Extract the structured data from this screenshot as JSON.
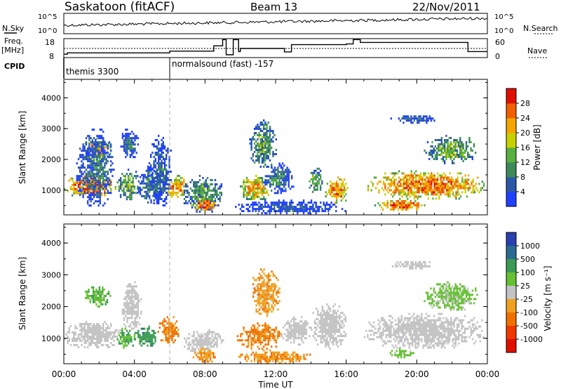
{
  "header": {
    "station": "Saskatoon (fitACF)",
    "beam": "Beam 13",
    "date": "22/Nov/2011"
  },
  "summary_panels": {
    "nsky_label": "N.Sky",
    "nsearch_label": "N.Search",
    "freq_label_line1": "Freq.",
    "freq_label_line2": "[MHz]",
    "nave_label": "Nave",
    "cpid_label": "CPID",
    "noise_ticks": [
      "10^5",
      "10^0"
    ],
    "freq_ticks": [
      "18",
      "8"
    ],
    "nave_ticks": [
      "60",
      "0"
    ],
    "cpid_segments": [
      {
        "start_hour": 0.0,
        "text": "themis 3300"
      },
      {
        "start_hour": 6.0,
        "text": "normalsound (fast) -157"
      }
    ],
    "frequency_mhz": [
      {
        "t": 0.0,
        "f": 9.8
      },
      {
        "t": 0.2,
        "f": 10.5
      },
      {
        "t": 6.0,
        "f": 11.4
      },
      {
        "t": 8.5,
        "f": 14.2
      },
      {
        "t": 9.0,
        "f": 17.5
      },
      {
        "t": 9.2,
        "f": 9.5
      },
      {
        "t": 9.6,
        "f": 17.5
      },
      {
        "t": 9.9,
        "f": 11.2
      },
      {
        "t": 10.0,
        "f": 12.8
      },
      {
        "t": 12.5,
        "f": 11.0
      },
      {
        "t": 12.9,
        "f": 14.8
      },
      {
        "t": 16.0,
        "f": 15.2
      },
      {
        "t": 16.4,
        "f": 17.5
      },
      {
        "t": 16.8,
        "f": 16.0
      },
      {
        "t": 22.9,
        "f": 11.2
      },
      {
        "t": 24.0,
        "f": 11.2
      }
    ]
  },
  "chart_data": [
    {
      "type": "heatmap",
      "name": "power-panel",
      "xlabel": "",
      "ylabel": "Slant Range [km]",
      "xlim": [
        0,
        24
      ],
      "ylim": [
        200,
        4600
      ],
      "yticks": [
        1000,
        2000,
        3000,
        4000
      ],
      "colorbar": {
        "label": "Power [dB]",
        "ticks": [
          "4",
          "8",
          "12",
          "16",
          "20",
          "24",
          "28"
        ],
        "colors": [
          "#2040ff",
          "#2d58a8",
          "#3d8a5a",
          "#58b040",
          "#c8d000",
          "#f5a500",
          "#f06000",
          "#e01000"
        ]
      },
      "blobs": [
        {
          "t0": 0.0,
          "t1": 2.9,
          "r0": 800,
          "r1": 1550,
          "v": 26
        },
        {
          "t0": 1.1,
          "t1": 2.6,
          "r0": 2000,
          "r1": 2700,
          "v": 22
        },
        {
          "t0": 0.7,
          "t1": 2.8,
          "r0": 500,
          "r1": 3000,
          "v": 8
        },
        {
          "t0": 3.0,
          "t1": 4.3,
          "r0": 700,
          "r1": 1700,
          "v": 14
        },
        {
          "t0": 3.2,
          "t1": 4.2,
          "r0": 2000,
          "r1": 3000,
          "v": 7
        },
        {
          "t0": 4.2,
          "t1": 5.5,
          "r0": 600,
          "r1": 1800,
          "v": 10
        },
        {
          "t0": 4.8,
          "t1": 6.1,
          "r0": 500,
          "r1": 2800,
          "v": 7
        },
        {
          "t0": 5.8,
          "t1": 7.0,
          "r0": 700,
          "r1": 1500,
          "v": 24
        },
        {
          "t0": 6.7,
          "t1": 9.0,
          "r0": 300,
          "r1": 1500,
          "v": 12
        },
        {
          "t0": 7.2,
          "t1": 8.6,
          "r0": 350,
          "r1": 750,
          "v": 27
        },
        {
          "t0": 9.8,
          "t1": 11.8,
          "r0": 700,
          "r1": 1500,
          "v": 21
        },
        {
          "t0": 10.5,
          "t1": 12.0,
          "r0": 1700,
          "r1": 3300,
          "v": 12
        },
        {
          "t0": 11.3,
          "t1": 13.0,
          "r0": 900,
          "r1": 1900,
          "v": 9
        },
        {
          "t0": 9.7,
          "t1": 16.0,
          "r0": 250,
          "r1": 700,
          "v": 5
        },
        {
          "t0": 13.8,
          "t1": 14.7,
          "r0": 900,
          "r1": 1800,
          "v": 13
        },
        {
          "t0": 14.8,
          "t1": 16.1,
          "r0": 600,
          "r1": 1450,
          "v": 25
        },
        {
          "t0": 17.2,
          "t1": 23.9,
          "r0": 750,
          "r1": 1650,
          "v": 25
        },
        {
          "t0": 17.6,
          "t1": 20.5,
          "r0": 350,
          "r1": 750,
          "v": 26
        },
        {
          "t0": 18.5,
          "t1": 21.0,
          "r0": 3200,
          "r1": 3500,
          "v": 7
        },
        {
          "t0": 20.4,
          "t1": 23.4,
          "r0": 1900,
          "r1": 2800,
          "v": 14
        }
      ]
    },
    {
      "type": "heatmap",
      "name": "velocity-panel",
      "xlabel": "Time UT",
      "ylabel": "Slant Range [km]",
      "xlim": [
        0,
        24
      ],
      "ylim": [
        200,
        4600
      ],
      "yticks": [
        1000,
        2000,
        3000,
        4000
      ],
      "xticks": [
        "00:00",
        "04:00",
        "08:00",
        "12:00",
        "16:00",
        "20:00",
        "00:00"
      ],
      "colorbar": {
        "label": "Velocity [m s⁻¹]",
        "ticks": [
          "1000",
          "500",
          "100",
          "25",
          "-25",
          "-100",
          "-500",
          "-1000"
        ],
        "colors": [
          "#2a3fb0",
          "#2a6a90",
          "#3a9a55",
          "#66c033",
          "#c3c3c3",
          "#f0a020",
          "#f07000",
          "#f03800",
          "#e01000"
        ]
      },
      "blobs": [
        {
          "t0": 0.0,
          "t1": 3.2,
          "r0": 700,
          "r1": 1550,
          "v": 0
        },
        {
          "t0": 1.1,
          "t1": 2.6,
          "r0": 2000,
          "r1": 2700,
          "v": 80
        },
        {
          "t0": 3.0,
          "t1": 4.0,
          "r0": 700,
          "r1": 1400,
          "v": 100
        },
        {
          "t0": 3.2,
          "t1": 4.4,
          "r0": 1300,
          "r1": 2800,
          "v": 0
        },
        {
          "t0": 4.0,
          "t1": 5.3,
          "r0": 700,
          "r1": 1400,
          "v": 300
        },
        {
          "t0": 5.3,
          "t1": 6.6,
          "r0": 900,
          "r1": 1700,
          "v": -150
        },
        {
          "t0": 6.8,
          "t1": 9.0,
          "r0": 500,
          "r1": 1300,
          "v": 0
        },
        {
          "t0": 7.3,
          "t1": 8.6,
          "r0": 250,
          "r1": 700,
          "v": -90
        },
        {
          "t0": 9.8,
          "t1": 12.3,
          "r0": 700,
          "r1": 1500,
          "v": -120
        },
        {
          "t0": 10.6,
          "t1": 12.2,
          "r0": 1700,
          "r1": 3200,
          "v": -70
        },
        {
          "t0": 12.3,
          "t1": 14.0,
          "r0": 800,
          "r1": 1700,
          "v": 0
        },
        {
          "t0": 9.8,
          "t1": 14.0,
          "r0": 250,
          "r1": 650,
          "v": -80
        },
        {
          "t0": 14.0,
          "t1": 16.0,
          "r0": 700,
          "r1": 2100,
          "v": 0
        },
        {
          "t0": 17.0,
          "t1": 23.9,
          "r0": 700,
          "r1": 1800,
          "v": 0
        },
        {
          "t0": 18.2,
          "t1": 19.8,
          "r0": 400,
          "r1": 700,
          "v": 60
        },
        {
          "t0": 18.5,
          "t1": 21.0,
          "r0": 3200,
          "r1": 3500,
          "v": 0
        },
        {
          "t0": 20.4,
          "t1": 23.4,
          "r0": 1900,
          "r1": 2800,
          "v": 40
        }
      ]
    }
  ]
}
